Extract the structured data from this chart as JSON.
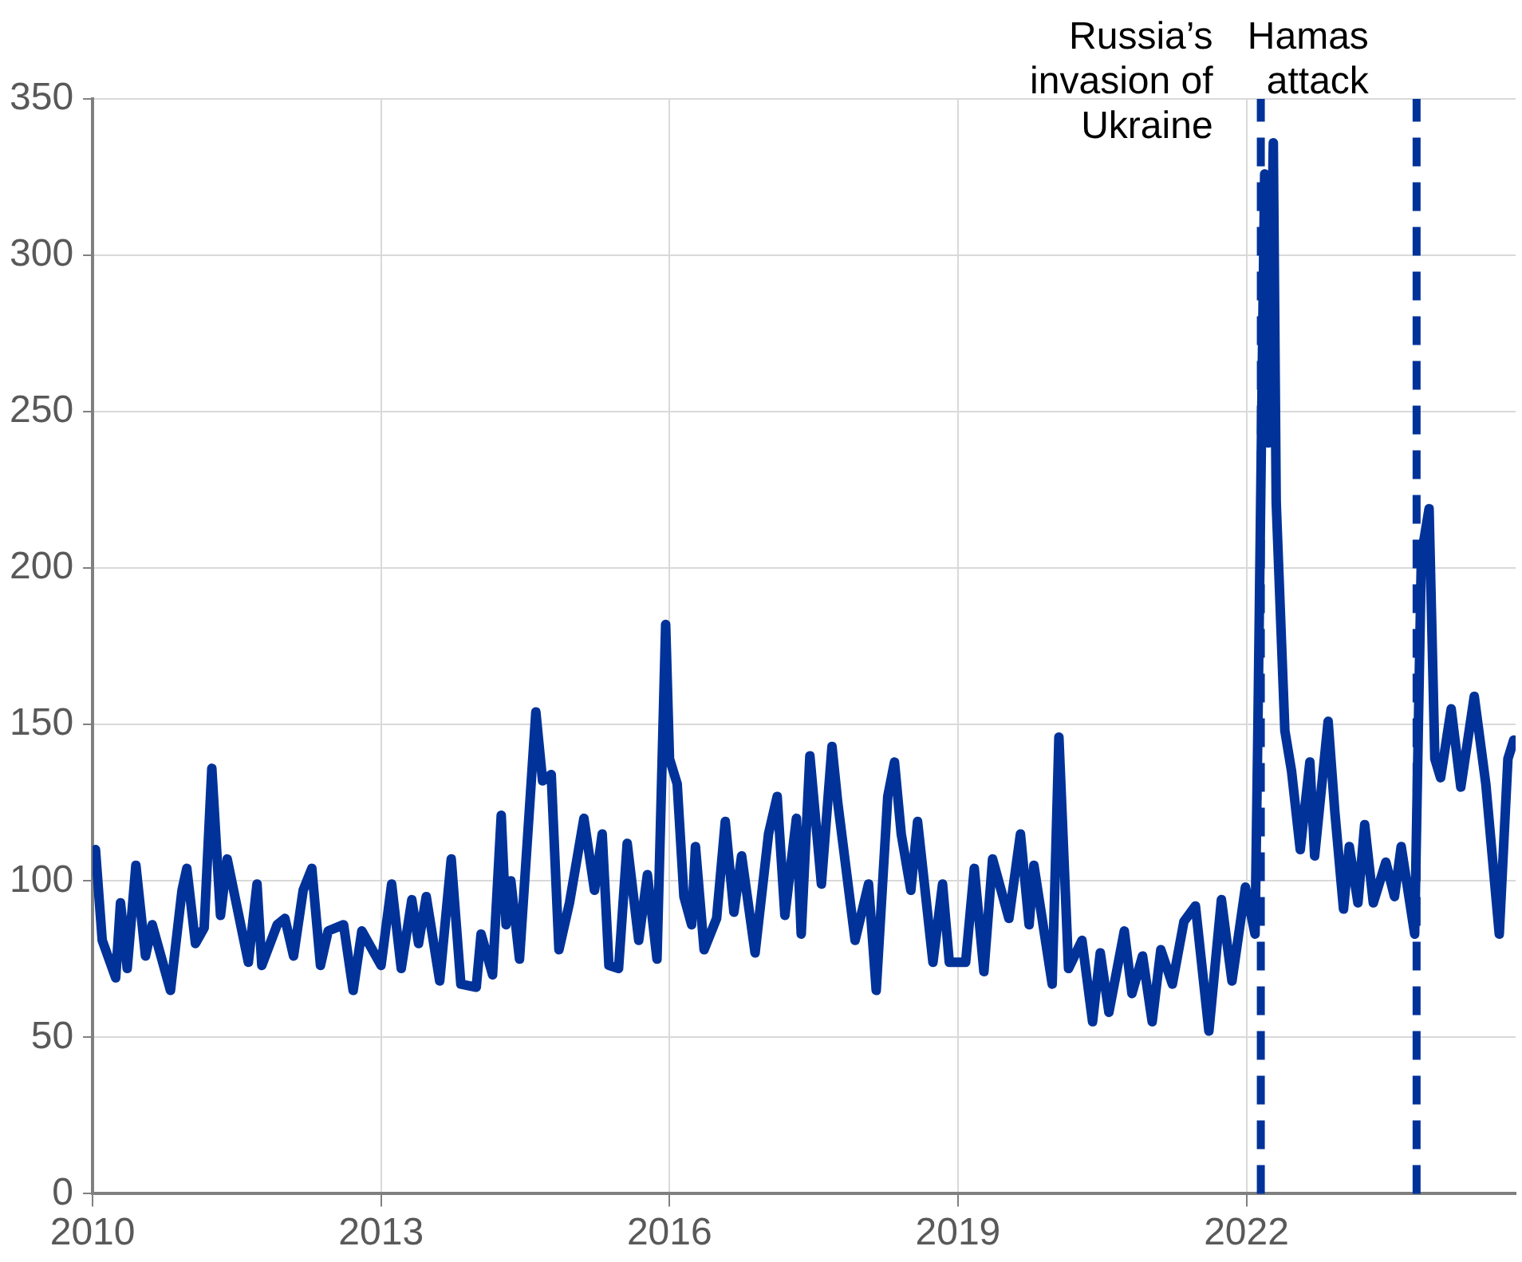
{
  "chart_data": {
    "type": "line",
    "x": [
      2010.03,
      2010.1,
      2010.24,
      2010.29,
      2010.36,
      2010.45,
      2010.55,
      2010.62,
      2010.81,
      2010.93,
      2010.98,
      2011.07,
      2011.16,
      2011.24,
      2011.33,
      2011.4,
      2011.62,
      2011.71,
      2011.76,
      2011.92,
      2012.0,
      2012.09,
      2012.19,
      2012.28,
      2012.37,
      2012.45,
      2012.61,
      2012.71,
      2012.8,
      2013.0,
      2013.11,
      2013.21,
      2013.32,
      2013.39,
      2013.47,
      2013.61,
      2013.73,
      2013.83,
      2013.99,
      2014.04,
      2014.16,
      2014.25,
      2014.3,
      2014.35,
      2014.44,
      2014.61,
      2014.68,
      2014.77,
      2014.85,
      2014.96,
      2015.11,
      2015.22,
      2015.3,
      2015.37,
      2015.47,
      2015.56,
      2015.68,
      2015.77,
      2015.87,
      2015.96,
      2016.0,
      2016.08,
      2016.15,
      2016.23,
      2016.27,
      2016.36,
      2016.49,
      2016.58,
      2016.67,
      2016.75,
      2016.89,
      2017.03,
      2017.12,
      2017.2,
      2017.32,
      2017.37,
      2017.46,
      2017.58,
      2017.69,
      2017.75,
      2017.93,
      2018.07,
      2018.15,
      2018.27,
      2018.34,
      2018.41,
      2018.51,
      2018.58,
      2018.74,
      2018.84,
      2018.91,
      2019.08,
      2019.17,
      2019.27,
      2019.36,
      2019.53,
      2019.65,
      2019.74,
      2019.79,
      2019.98,
      2020.05,
      2020.15,
      2020.29,
      2020.4,
      2020.48,
      2020.57,
      2020.73,
      2020.81,
      2020.92,
      2021.02,
      2021.11,
      2021.23,
      2021.35,
      2021.47,
      2021.61,
      2021.74,
      2021.85,
      2021.99,
      2022.09,
      2022.12,
      2022.19,
      2022.23,
      2022.28,
      2022.31,
      2022.4,
      2022.47,
      2022.56,
      2022.66,
      2022.71,
      2022.85,
      2022.92,
      2023.01,
      2023.07,
      2023.16,
      2023.23,
      2023.32,
      2023.45,
      2023.54,
      2023.61,
      2023.75,
      2023.82,
      2023.9,
      2023.96,
      2024.02,
      2024.13,
      2024.23,
      2024.37,
      2024.49,
      2024.63,
      2024.72,
      2024.78
    ],
    "series": [
      {
        "color": "#003299",
        "values": [
          110,
          81,
          69,
          93,
          72,
          105,
          76,
          86,
          65,
          97,
          104,
          80,
          85,
          136,
          89,
          107,
          74,
          99,
          73,
          86,
          88,
          76,
          97,
          104,
          73,
          84,
          86,
          65,
          84,
          73,
          99,
          72,
          94,
          80,
          95,
          68,
          107,
          67,
          66,
          83,
          70,
          121,
          86,
          100,
          75,
          154,
          132,
          134,
          78,
          93,
          120,
          97,
          115,
          73,
          72,
          112,
          81,
          102,
          75,
          182,
          139,
          131,
          95,
          86,
          111,
          78,
          88,
          119,
          90,
          108,
          77,
          115,
          127,
          89,
          120,
          83,
          140,
          99,
          143,
          125,
          81,
          99,
          65,
          127,
          138,
          115,
          97,
          119,
          74,
          99,
          74,
          74,
          104,
          71,
          107,
          88,
          115,
          86,
          105,
          67,
          146,
          72,
          81,
          55,
          77,
          58,
          84,
          64,
          76,
          55,
          78,
          67,
          87,
          92,
          52,
          94,
          68,
          98,
          83,
          150,
          326,
          240,
          336,
          221,
          148,
          135,
          110,
          138,
          108,
          151,
          122,
          91,
          111,
          93,
          118,
          93,
          106,
          95,
          111,
          83,
          204,
          219,
          139,
          133,
          155,
          130,
          159,
          131,
          83,
          139,
          145
        ]
      }
    ],
    "xlim": [
      2010,
      2024.8
    ],
    "xticks": [
      2010,
      2013,
      2016,
      2019,
      2022
    ],
    "ylim": [
      0,
      350
    ],
    "yticks": [
      0,
      50,
      100,
      150,
      200,
      250,
      300,
      350
    ],
    "grid": true,
    "legend": false,
    "ref_lines": [
      {
        "axis": "x",
        "value": 2022.15,
        "label": "Russia’s invasion of Ukraine",
        "color": "#003299",
        "line_style": "dashed"
      },
      {
        "axis": "x",
        "value": 2023.77,
        "label": "Hamas attack",
        "color": "#003299",
        "line_style": "dashed"
      }
    ]
  }
}
